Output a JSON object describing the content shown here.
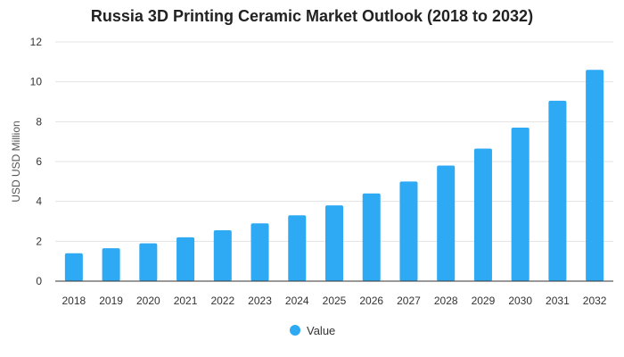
{
  "chart_data": {
    "type": "bar",
    "title": "Russia 3D Printing Ceramic Market Outlook (2018 to 2032)",
    "xlabel": "",
    "ylabel": "USD USD Million",
    "ylim": [
      0,
      12
    ],
    "yticks": [
      0,
      2,
      4,
      6,
      8,
      10,
      12
    ],
    "grid": true,
    "legend_position": "bottom",
    "categories": [
      "2018",
      "2019",
      "2020",
      "2021",
      "2022",
      "2023",
      "2024",
      "2025",
      "2026",
      "2027",
      "2028",
      "2029",
      "2030",
      "2031",
      "2032"
    ],
    "series": [
      {
        "name": "Value",
        "color": "#2eaaf5",
        "values": [
          1.4,
          1.65,
          1.9,
          2.2,
          2.55,
          2.9,
          3.3,
          3.8,
          4.4,
          5.0,
          5.8,
          6.65,
          7.7,
          9.05,
          10.6
        ]
      }
    ]
  }
}
